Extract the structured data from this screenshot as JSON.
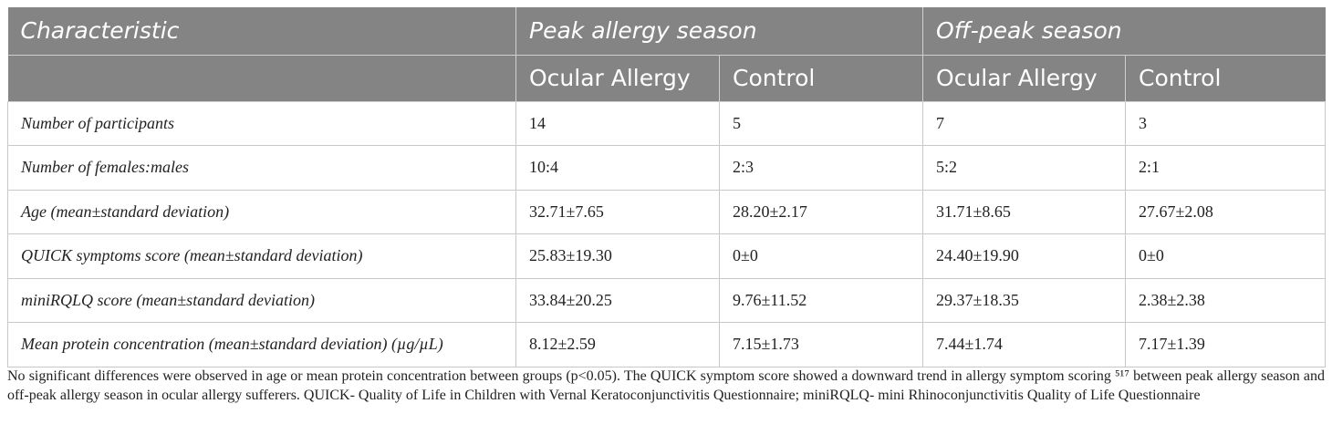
{
  "header": {
    "characteristic": "Characteristic",
    "peak": "Peak allergy season",
    "offpeak": "Off-peak season",
    "sub": [
      "Ocular Allergy",
      "Control",
      "Ocular Allergy",
      "Control"
    ]
  },
  "rows": [
    {
      "label": "Number of participants",
      "values": [
        "14",
        "5",
        "7",
        "3"
      ]
    },
    {
      "label": "Number of females:males",
      "values": [
        "10:4",
        "2:3",
        "5:2",
        "2:1"
      ]
    },
    {
      "label": "Age (mean±standard deviation)",
      "values": [
        "32.71±7.65",
        "28.20±2.17",
        "31.71±8.65",
        "27.67±2.08"
      ]
    },
    {
      "label": "QUICK symptoms score (mean±standard deviation)",
      "values": [
        "25.83±19.30",
        "0±0",
        "24.40±19.90",
        "0±0"
      ]
    },
    {
      "label": "miniRQLQ score (mean±standard deviation)",
      "values": [
        "33.84±20.25",
        "9.76±11.52",
        "29.37±18.35",
        "2.38±2.38"
      ]
    },
    {
      "label": "Mean protein concentration (mean±standard deviation) (µg/µL)",
      "values": [
        "8.12±2.59",
        "7.15±1.73",
        "7.44±1.74",
        "7.17±1.39"
      ]
    }
  ],
  "footnote": "No significant differences were observed in age or mean protein concentration between groups (p<0.05). The QUICK symptom score showed a downward trend in allergy symptom scoring ⁵¹⁷ between peak allergy season and off-peak allergy season in ocular allergy sufferers. QUICK- Quality of Life in Children with Vernal Keratoconjunctivitis Questionnaire; miniRQLQ- mini Rhinoconjunctivitis Quality of Life Questionnaire"
}
